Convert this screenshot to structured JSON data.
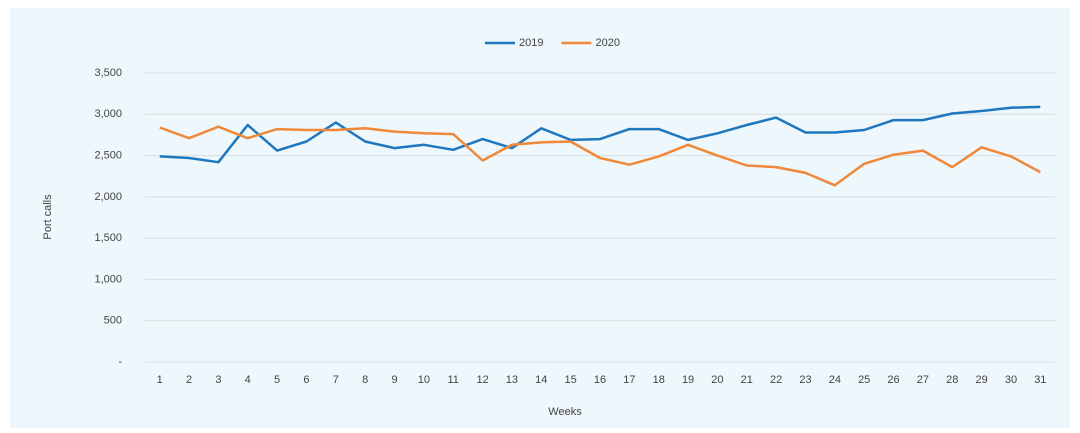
{
  "chart_data": {
    "type": "line",
    "x_label": "Weeks",
    "y_label": "Port calls",
    "categories": [
      "1",
      "2",
      "3",
      "4",
      "5",
      "6",
      "7",
      "8",
      "9",
      "10",
      "11",
      "12",
      "13",
      "14",
      "15",
      "16",
      "17",
      "18",
      "19",
      "20",
      "21",
      "22",
      "23",
      "24",
      "25",
      "26",
      "27",
      "28",
      "29",
      "30",
      "31"
    ],
    "series": [
      {
        "name": "2019",
        "color": "#1f77c0",
        "values": [
          2490,
          2470,
          2420,
          2870,
          2560,
          2670,
          2900,
          2670,
          2590,
          2630,
          2570,
          2700,
          2590,
          2830,
          2690,
          2700,
          2820,
          2820,
          2690,
          2770,
          2870,
          2960,
          2780,
          2780,
          2810,
          2930,
          2930,
          3010,
          3040,
          3080,
          3090
        ]
      },
      {
        "name": "2020",
        "color": "#f0883a",
        "values": [
          2840,
          2710,
          2850,
          2710,
          2820,
          2810,
          2810,
          2830,
          2790,
          2770,
          2760,
          2440,
          2630,
          2660,
          2670,
          2470,
          2390,
          2490,
          2630,
          2500,
          2380,
          2360,
          2290,
          2140,
          2400,
          2510,
          2560,
          2360,
          2600,
          2490,
          2300
        ]
      }
    ],
    "ylim": [
      0,
      3500
    ],
    "yticks": [
      {
        "value": 0,
        "label": "-"
      },
      500,
      {
        "value": 1000,
        "label": "1,000"
      },
      {
        "value": 1500,
        "label": "1,500"
      },
      {
        "value": 2000,
        "label": "2,000"
      },
      {
        "value": 2500,
        "label": "2,500"
      },
      {
        "value": 3000,
        "label": "3,000"
      },
      {
        "value": 3500,
        "label": "3,500"
      }
    ],
    "grid": true,
    "legend": "top"
  }
}
